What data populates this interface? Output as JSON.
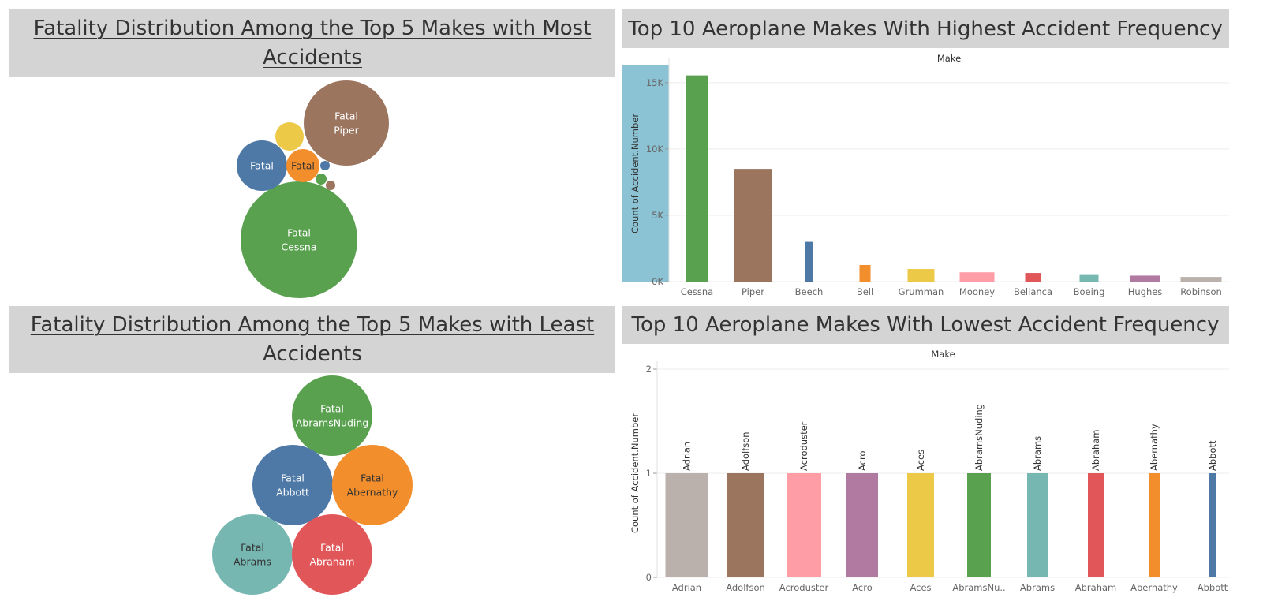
{
  "chart_data": [
    {
      "type": "bubble",
      "title": "Fatality Distribution Among the Top 5 Makes with Most Accidents",
      "bubbles": [
        {
          "make": "Cessna",
          "label_lines": [
            "Fatal",
            "Cessna"
          ],
          "color": "#59a14f",
          "text_color": "#ffffff"
        },
        {
          "make": "Piper",
          "label_lines": [
            "Fatal",
            "Piper"
          ],
          "color": "#9c755f",
          "text_color": "#ffffff"
        },
        {
          "make": "Beech",
          "label_lines": [
            "Fatal"
          ],
          "color": "#4e79a7",
          "text_color": "#ffffff"
        },
        {
          "make": "Bell",
          "label_lines": [
            "Fatal"
          ],
          "color": "#f28e2b",
          "text_color": "#333333"
        },
        {
          "make": "Grumman",
          "label_lines": [],
          "color": "#edc948",
          "text_color": "#333333"
        },
        {
          "make": "",
          "label_lines": [],
          "color": "#4e79a7",
          "text_color": "#ffffff"
        },
        {
          "make": "",
          "label_lines": [],
          "color": "#59a14f",
          "text_color": "#ffffff"
        },
        {
          "make": "",
          "label_lines": [],
          "color": "#9c755f",
          "text_color": "#ffffff"
        }
      ]
    },
    {
      "type": "bar",
      "title": "Top 10 Aeroplane Makes With Highest Accident Frequency",
      "column_header": "Make",
      "ylabel": "Count of Accident.Number",
      "yticks": [
        "0K",
        "5K",
        "10K",
        "15K"
      ],
      "ylim": [
        0,
        16300
      ],
      "categories": [
        "Cessna",
        "Piper",
        "Beech",
        "Bell",
        "Grumman",
        "Mooney",
        "Bellanca",
        "Boeing",
        "Hughes",
        "Robinson"
      ],
      "values": [
        15550,
        8500,
        3000,
        1250,
        950,
        700,
        650,
        500,
        450,
        350
      ],
      "colors": [
        "#59a14f",
        "#9c755f",
        "#4e79a7",
        "#f28e2b",
        "#edc948",
        "#ff9da7",
        "#e15759",
        "#76b7b2",
        "#b07aa1",
        "#bab0ac"
      ]
    },
    {
      "type": "bubble",
      "title": "Fatality Distribution Among the Top 5 Makes with Least Accidents",
      "bubbles": [
        {
          "make": "AbramsNuding",
          "label_lines": [
            "Fatal",
            "AbramsNuding"
          ],
          "color": "#59a14f",
          "text_color": "#ffffff"
        },
        {
          "make": "Abbott",
          "label_lines": [
            "Fatal",
            "Abbott"
          ],
          "color": "#4e79a7",
          "text_color": "#ffffff"
        },
        {
          "make": "Abernathy",
          "label_lines": [
            "Fatal",
            "Abernathy"
          ],
          "color": "#f28e2b",
          "text_color": "#333333"
        },
        {
          "make": "Abrams",
          "label_lines": [
            "Fatal",
            "Abrams"
          ],
          "color": "#76b7b2",
          "text_color": "#333333"
        },
        {
          "make": "Abraham",
          "label_lines": [
            "Fatal",
            "Abraham"
          ],
          "color": "#e15759",
          "text_color": "#ffffff"
        }
      ]
    },
    {
      "type": "bar",
      "title": "Top 10 Aeroplane Makes With Lowest Accident Frequency",
      "column_header": "Make",
      "ylabel": "Count of Accident.Number",
      "yticks": [
        "0",
        "1",
        "2"
      ],
      "ylim": [
        0,
        2
      ],
      "categories": [
        "Adrian",
        "Adolfson",
        "Acroduster",
        "Acro",
        "Aces",
        "AbramsNuding",
        "Abrams",
        "Abraham",
        "Abernathy",
        "Abbott"
      ],
      "xtick_labels": [
        "Adrian",
        "Adolfson",
        "Acroduster",
        "Acro",
        "Aces",
        "AbramsNu..",
        "Abrams",
        "Abraham",
        "Abernathy",
        "Abbott"
      ],
      "values": [
        1,
        1,
        1,
        1,
        1,
        1,
        1,
        1,
        1,
        1
      ],
      "colors": [
        "#bab0ac",
        "#9c755f",
        "#ff9da7",
        "#b07aa1",
        "#edc948",
        "#59a14f",
        "#76b7b2",
        "#e15759",
        "#f28e2b",
        "#4e79a7"
      ]
    }
  ]
}
